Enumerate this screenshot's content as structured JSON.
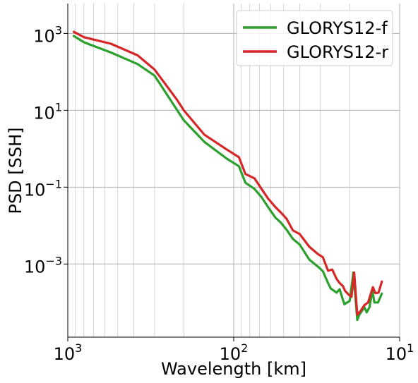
{
  "chart_data": {
    "type": "line",
    "title": "",
    "xlabel": "Wavelength [km]",
    "ylabel": "PSD [SSH]",
    "x_scale": "log",
    "y_scale": "log",
    "x_reversed": true,
    "xlim": [
      1000,
      10
    ],
    "ylim": [
      1.25e-05,
      6000
    ],
    "grid": true,
    "legend": "top-right",
    "x_ticks": [
      {
        "value": 1000,
        "base": "10",
        "exp": "3"
      },
      {
        "value": 100,
        "base": "10",
        "exp": "2"
      },
      {
        "value": 10,
        "base": "10",
        "exp": "1"
      }
    ],
    "y_ticks": [
      {
        "value": 1000,
        "base": "10",
        "exp": "3"
      },
      {
        "value": 10,
        "base": "10",
        "exp": "1"
      },
      {
        "value": 0.1,
        "base": "10",
        "exp": "−1"
      },
      {
        "value": 0.001,
        "base": "10",
        "exp": "−3"
      }
    ],
    "series": [
      {
        "name": "GLORYS12-f",
        "color": "#2ca02c",
        "points": [
          [
            920,
            860
          ],
          [
            800,
            590
          ],
          [
            550,
            320
          ],
          [
            380,
            160
          ],
          [
            300,
            80
          ],
          [
            200,
            5.5
          ],
          [
            150,
            1.5
          ],
          [
            110,
            0.55
          ],
          [
            93,
            0.35
          ],
          [
            85,
            0.13
          ],
          [
            75,
            0.09
          ],
          [
            68,
            0.055
          ],
          [
            62,
            0.03
          ],
          [
            56,
            0.016
          ],
          [
            52,
            0.012
          ],
          [
            48,
            0.0078
          ],
          [
            44,
            0.0045
          ],
          [
            40,
            0.0032
          ],
          [
            35,
            0.0013
          ],
          [
            31,
            0.00085
          ],
          [
            29,
            0.00065
          ],
          [
            27,
            0.00032
          ],
          [
            26,
            0.00023
          ],
          [
            24,
            0.00018
          ],
          [
            23,
            0.00022
          ],
          [
            22,
            0.00012
          ],
          [
            21.5,
            9e-05
          ],
          [
            20,
            0.00011
          ],
          [
            19,
            0.0006
          ],
          [
            18,
            3.5e-05
          ],
          [
            17.5,
            4.8e-05
          ],
          [
            16.3,
            7.5e-05
          ],
          [
            15.8,
            5.5e-05
          ],
          [
            15.2,
            7.5e-05
          ],
          [
            14.6,
            0.00021
          ],
          [
            14.2,
            0.0001
          ],
          [
            13.5,
            0.0001
          ],
          [
            12.8,
            0.00017
          ]
        ]
      },
      {
        "name": "GLORYS12-r",
        "color": "#d62728",
        "points": [
          [
            920,
            1100
          ],
          [
            800,
            800
          ],
          [
            550,
            540
          ],
          [
            380,
            270
          ],
          [
            300,
            115
          ],
          [
            220,
            19
          ],
          [
            200,
            10
          ],
          [
            150,
            2.3
          ],
          [
            110,
            0.95
          ],
          [
            93,
            0.6
          ],
          [
            85,
            0.22
          ],
          [
            75,
            0.17
          ],
          [
            68,
            0.09
          ],
          [
            62,
            0.05
          ],
          [
            56,
            0.03
          ],
          [
            52,
            0.022
          ],
          [
            48,
            0.015
          ],
          [
            44,
            0.0075
          ],
          [
            40,
            0.006
          ],
          [
            35,
            0.0028
          ],
          [
            31,
            0.0018
          ],
          [
            29,
            0.0015
          ],
          [
            27,
            0.00067
          ],
          [
            25.5,
            0.00072
          ],
          [
            24,
            0.00041
          ],
          [
            23,
            0.00032
          ],
          [
            22,
            0.00027
          ],
          [
            21.3,
            0.0002
          ],
          [
            20.3,
            0.00016
          ],
          [
            19.5,
            0.00014
          ],
          [
            18.8,
            0.0006
          ],
          [
            18,
            4.8e-05
          ],
          [
            17.2,
            6e-05
          ],
          [
            16.3,
            8.5e-05
          ],
          [
            15.5,
            0.0001
          ],
          [
            14.5,
            0.00025
          ],
          [
            14,
            0.000175
          ],
          [
            13.4,
            0.00018
          ],
          [
            12.8,
            0.00035
          ]
        ]
      }
    ]
  }
}
